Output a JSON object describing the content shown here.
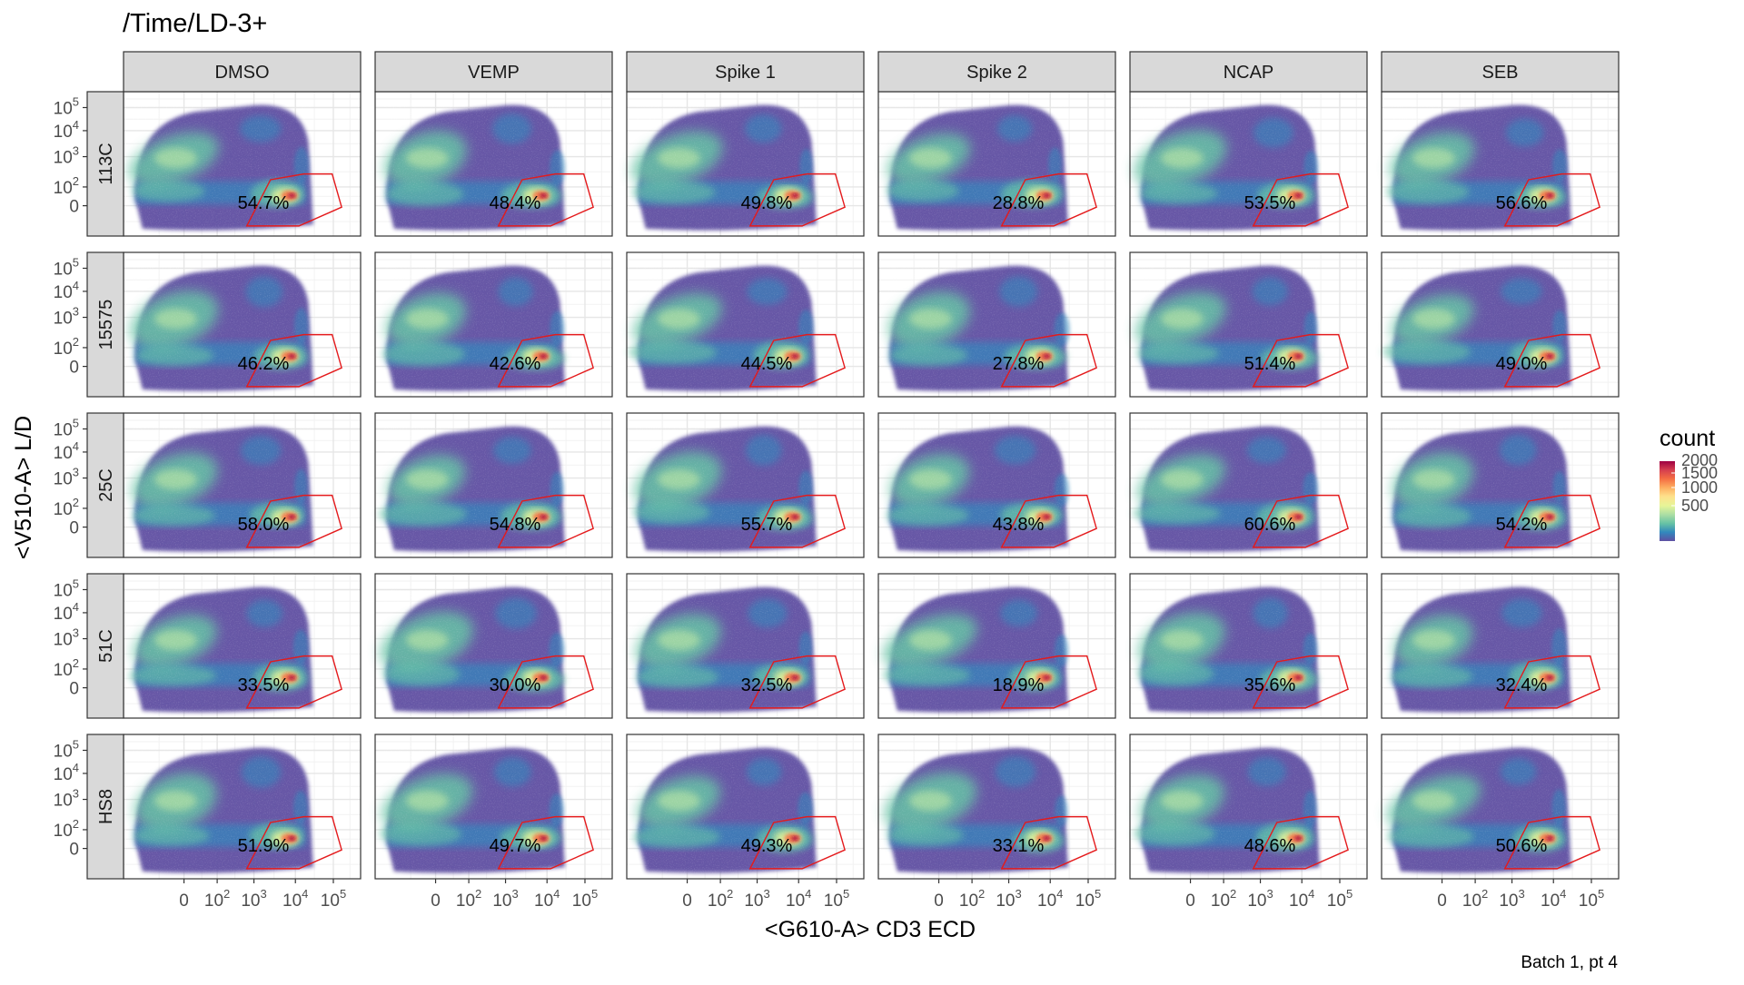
{
  "chart_data": {
    "type": "heatmap",
    "subtype": "faceted-2d-density-flow-cytometry",
    "title": "/Time/LD-3+",
    "xlabel": "<G610-A> CD3 ECD",
    "ylabel": "<V510-A> L/D",
    "caption": "Batch 1, pt 4",
    "col_facets": [
      "DMSO",
      "VEMP",
      "Spike 1",
      "Spike 2",
      "NCAP",
      "SEB"
    ],
    "row_facets": [
      "113C",
      "15575",
      "25C",
      "51C",
      "HS8"
    ],
    "x_ticks": [
      {
        "base": "0",
        "exp": ""
      },
      {
        "base": "10",
        "exp": "2"
      },
      {
        "base": "10",
        "exp": "3"
      },
      {
        "base": "10",
        "exp": "4"
      },
      {
        "base": "10",
        "exp": "5"
      }
    ],
    "y_ticks": [
      {
        "base": "10",
        "exp": "5"
      },
      {
        "base": "10",
        "exp": "4"
      },
      {
        "base": "10",
        "exp": "3"
      },
      {
        "base": "10",
        "exp": "2"
      },
      {
        "base": "0",
        "exp": ""
      }
    ],
    "gate_percentages": [
      [
        "54.7%",
        "48.4%",
        "49.8%",
        "28.8%",
        "53.5%",
        "56.6%"
      ],
      [
        "46.2%",
        "42.6%",
        "44.5%",
        "27.8%",
        "51.4%",
        "49.0%"
      ],
      [
        "58.0%",
        "54.8%",
        "55.7%",
        "43.8%",
        "60.6%",
        "54.2%"
      ],
      [
        "33.5%",
        "30.0%",
        "32.5%",
        "18.9%",
        "35.6%",
        "32.4%"
      ],
      [
        "51.9%",
        "49.7%",
        "49.3%",
        "33.1%",
        "48.6%",
        "50.6%"
      ]
    ],
    "legend": {
      "title": "count",
      "labels": [
        "2000",
        "1500",
        "1000",
        "500"
      ],
      "position": "right",
      "colors": [
        "#5e4fa2",
        "#3288bd",
        "#66c2a5",
        "#abdda4",
        "#e6f598",
        "#fee08b",
        "#fdae61",
        "#f46d43",
        "#d53e4f",
        "#9e0142"
      ]
    },
    "gate_color": "#e41a1c",
    "grid": true
  }
}
